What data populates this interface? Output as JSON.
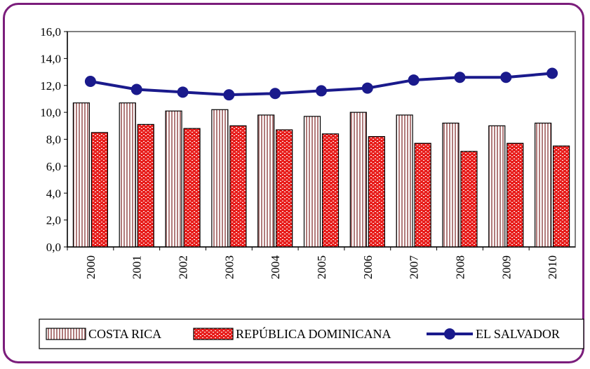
{
  "chart_data": {
    "type": "bar",
    "categories": [
      "2000",
      "2001",
      "2002",
      "2003",
      "2004",
      "2005",
      "2006",
      "2007",
      "2008",
      "2009",
      "2010"
    ],
    "series": [
      {
        "name": "COSTA RICA",
        "kind": "bar",
        "pattern": "vertical-stripes",
        "color": "#b07a7a",
        "values": [
          10.7,
          10.7,
          10.1,
          10.2,
          9.8,
          9.7,
          10.0,
          9.8,
          9.2,
          9.0,
          9.2
        ]
      },
      {
        "name": "REPÚBLICA DOMINICANA",
        "kind": "bar",
        "pattern": "brick",
        "color": "#e8201e",
        "values": [
          8.5,
          9.1,
          8.8,
          9.0,
          8.7,
          8.4,
          8.2,
          7.7,
          7.1,
          7.7,
          7.5
        ]
      },
      {
        "name": "EL SALVADOR",
        "kind": "line",
        "color": "#1a1a8c",
        "values": [
          12.3,
          11.7,
          11.5,
          11.3,
          11.4,
          11.6,
          11.8,
          12.4,
          12.6,
          12.6,
          12.9
        ]
      }
    ],
    "yticks": [
      "0,0",
      "2,0",
      "4,0",
      "6,0",
      "8,0",
      "10,0",
      "12,0",
      "14,0",
      "16,0"
    ],
    "ylim": [
      0,
      16
    ],
    "grid": false,
    "legend": "bottom",
    "title": "",
    "xlabel": "",
    "ylabel": ""
  }
}
